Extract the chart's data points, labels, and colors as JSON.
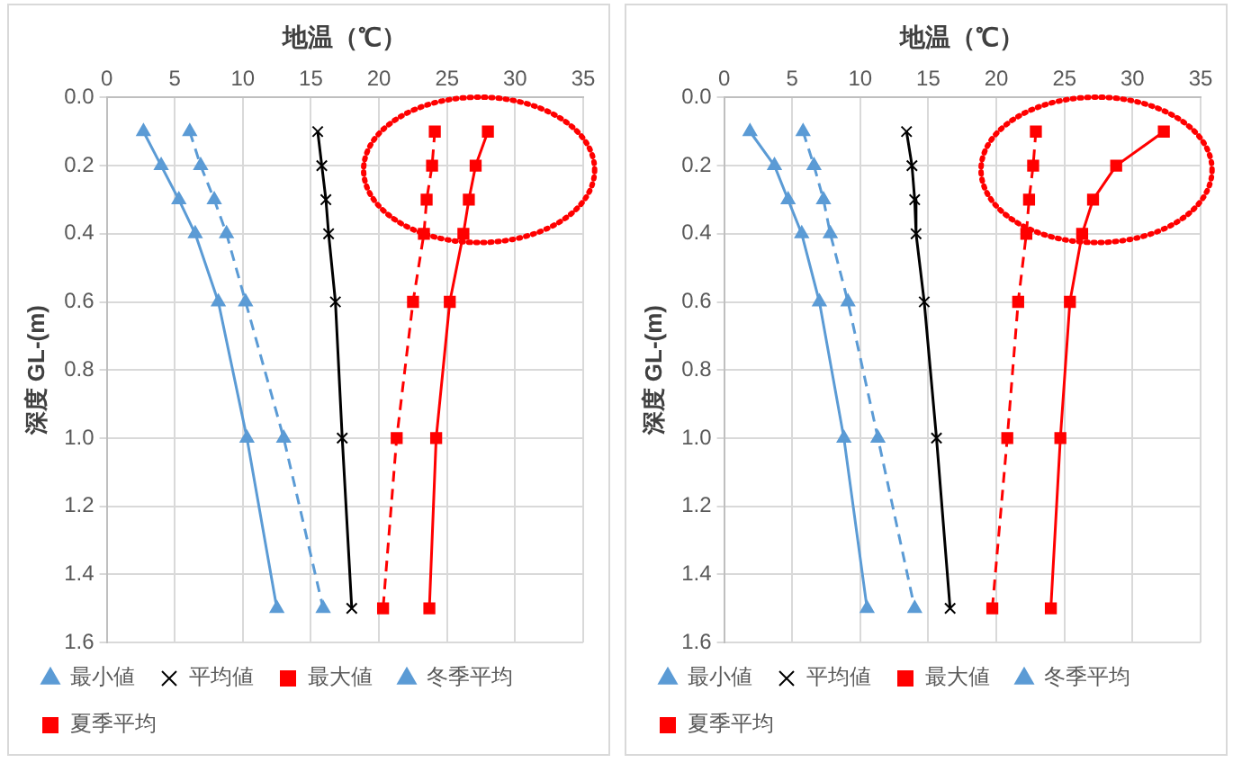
{
  "chart_data": [
    {
      "type": "line",
      "xlabel": "地温（℃）",
      "ylabel": "深度 GL-(m)",
      "xlim": [
        0,
        35
      ],
      "xticks": [
        0,
        5,
        10,
        15,
        20,
        25,
        30,
        35
      ],
      "ylim": [
        1.6,
        0
      ],
      "yticks": [
        {
          "value": 0,
          "label": "0.0"
        },
        {
          "value": 0.2,
          "label": "0.2"
        },
        {
          "value": 0.4,
          "label": "0.4"
        },
        {
          "value": 0.6,
          "label": "0.6"
        },
        {
          "value": 0.8,
          "label": "0.8"
        },
        {
          "value": 1,
          "label": "1.0"
        },
        {
          "value": 1.2,
          "label": "1.2"
        },
        {
          "value": 1.4,
          "label": "1.4"
        },
        {
          "value": 1.6,
          "label": "1.6"
        }
      ],
      "grid": true,
      "legend": "bottom",
      "series": [
        {
          "name": "最小値",
          "color": "#5b9bd5",
          "marker": "triangle",
          "line_style": "solid",
          "x": [
            2.7,
            4,
            5.3,
            6.5,
            8.2,
            10.3,
            12.5
          ],
          "values": [
            0.1,
            0.2,
            0.3,
            0.4,
            0.6,
            1,
            1.5
          ]
        },
        {
          "name": "平均値",
          "color": "#000000",
          "marker": "cross",
          "line_style": "solid",
          "x": [
            15.5,
            15.8,
            16.1,
            16.3,
            16.8,
            17.3,
            18
          ],
          "values": [
            0.1,
            0.2,
            0.3,
            0.4,
            0.6,
            1,
            1.5
          ]
        },
        {
          "name": "最大値",
          "color": "#ff0000",
          "marker": "square",
          "line_style": "solid",
          "x": [
            28,
            27.1,
            26.6,
            26.2,
            25.2,
            24.2,
            23.7
          ],
          "values": [
            0.1,
            0.2,
            0.3,
            0.4,
            0.6,
            1,
            1.5
          ]
        },
        {
          "name": "冬季平均",
          "color": "#5b9bd5",
          "marker": "triangle",
          "line_style": "dashed",
          "x": [
            6.1,
            6.9,
            7.9,
            8.8,
            10.2,
            13,
            15.9
          ],
          "values": [
            0.1,
            0.2,
            0.3,
            0.4,
            0.6,
            1,
            1.5
          ]
        },
        {
          "name": "夏季平均",
          "color": "#ff0000",
          "marker": "square",
          "line_style": "dashed",
          "x": [
            24.1,
            23.9,
            23.5,
            23.3,
            22.5,
            21.3,
            20.3
          ],
          "values": [
            0.1,
            0.2,
            0.3,
            0.4,
            0.6,
            1,
            1.5
          ]
        }
      ]
    },
    {
      "type": "line",
      "xlabel": "地温（℃）",
      "ylabel": "深度 GL-(m)",
      "xlim": [
        0,
        35
      ],
      "xticks": [
        0,
        5,
        10,
        15,
        20,
        25,
        30,
        35
      ],
      "ylim": [
        1.6,
        0
      ],
      "yticks": [
        {
          "value": 0,
          "label": "0.0"
        },
        {
          "value": 0.2,
          "label": "0.2"
        },
        {
          "value": 0.4,
          "label": "0.4"
        },
        {
          "value": 0.6,
          "label": "0.6"
        },
        {
          "value": 0.8,
          "label": "0.8"
        },
        {
          "value": 1,
          "label": "1.0"
        },
        {
          "value": 1.2,
          "label": "1.2"
        },
        {
          "value": 1.4,
          "label": "1.4"
        },
        {
          "value": 1.6,
          "label": "1.6"
        }
      ],
      "grid": true,
      "legend": "bottom",
      "series": [
        {
          "name": "最小値",
          "color": "#5b9bd5",
          "marker": "triangle",
          "line_style": "solid",
          "x": [
            1.9,
            3.7,
            4.7,
            5.7,
            7,
            8.8,
            10.5
          ],
          "values": [
            0.1,
            0.2,
            0.3,
            0.4,
            0.6,
            1,
            1.5
          ]
        },
        {
          "name": "平均値",
          "color": "#000000",
          "marker": "cross",
          "line_style": "solid",
          "x": [
            13.4,
            13.8,
            14,
            14.1,
            14.7,
            15.6,
            16.6
          ],
          "values": [
            0.1,
            0.2,
            0.3,
            0.4,
            0.6,
            1,
            1.5
          ]
        },
        {
          "name": "最大値",
          "color": "#ff0000",
          "marker": "square",
          "line_style": "solid",
          "x": [
            32.3,
            28.8,
            27.1,
            26.3,
            25.4,
            24.7,
            24
          ],
          "values": [
            0.1,
            0.2,
            0.3,
            0.4,
            0.6,
            1,
            1.5
          ]
        },
        {
          "name": "冬季平均",
          "color": "#5b9bd5",
          "marker": "triangle",
          "line_style": "dashed",
          "x": [
            5.8,
            6.6,
            7.3,
            7.8,
            9.1,
            11.3,
            14
          ],
          "values": [
            0.1,
            0.2,
            0.3,
            0.4,
            0.6,
            1,
            1.5
          ]
        },
        {
          "name": "夏季平均",
          "color": "#ff0000",
          "marker": "square",
          "line_style": "dashed",
          "x": [
            22.9,
            22.7,
            22.4,
            22.2,
            21.6,
            20.8,
            19.7
          ],
          "values": [
            0.1,
            0.2,
            0.3,
            0.4,
            0.6,
            1,
            1.5
          ]
        }
      ]
    }
  ]
}
